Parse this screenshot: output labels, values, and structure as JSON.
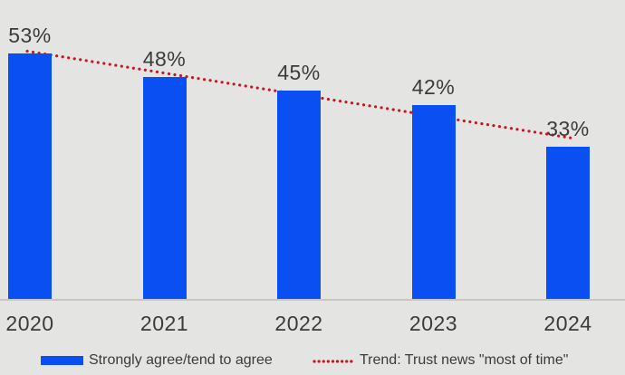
{
  "chart_data": {
    "type": "bar",
    "categories": [
      "2020",
      "2021",
      "2022",
      "2023",
      "2024"
    ],
    "series": [
      {
        "name": "Strongly agree/tend to agree",
        "values": [
          53,
          48,
          45,
          42,
          33
        ]
      }
    ],
    "data_labels": [
      "53%",
      "48%",
      "45%",
      "42%",
      "33%"
    ],
    "trendline": {
      "name": "Trend: Trust news \"most of time\"",
      "style": "dotted",
      "fit": "linear"
    },
    "title": "",
    "xlabel": "",
    "ylabel": "",
    "ylim": [
      0,
      64
    ],
    "grid": false,
    "legend_position": "bottom"
  },
  "legend": {
    "bar_label": "Strongly agree/tend to agree",
    "trend_label": "Trend: Trust news \"most of time\""
  },
  "colors": {
    "bar": "#0a4ff2",
    "trend": "#cb1422",
    "text": "#3b3b3b",
    "background": "#e4e4e2",
    "axis_line": "#c6c6c4"
  }
}
